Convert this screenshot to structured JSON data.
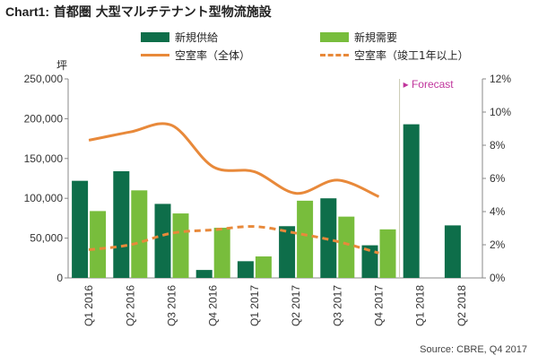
{
  "page": {
    "title_prefix": "Chart1:",
    "title_main": "首都圏 大型マルチテナント型物流施設",
    "unit_label": "坪",
    "source": "Source: CBRE, Q4 2017",
    "forecast_label": "▸ Forecast"
  },
  "legend": {
    "supply": "新規供給",
    "demand": "新規需要",
    "vacancy_all": "空室率（全体）",
    "vacancy_1yr": "空室率（竣工1年以上）"
  },
  "colors": {
    "supply": "#0e6e4a",
    "demand": "#78bd3c",
    "vacancy": "#e8893a",
    "forecast": "#c0349c"
  },
  "chart_data": {
    "type": "bar",
    "categories": [
      "Q1 2016",
      "Q2 2016",
      "Q3 2016",
      "Q4 2016",
      "Q1 2017",
      "Q2 2017",
      "Q3 2017",
      "Q4 2017",
      "Q1 2018",
      "Q2 2018"
    ],
    "series": [
      {
        "name": "新規供給",
        "type": "bar",
        "axis": "left",
        "values": [
          122000,
          134000,
          93000,
          10000,
          21000,
          65000,
          100000,
          41000,
          193000,
          66000
        ]
      },
      {
        "name": "新規需要",
        "type": "bar",
        "axis": "left",
        "values": [
          84000,
          110000,
          81000,
          63000,
          27000,
          97000,
          77000,
          61000,
          null,
          null
        ]
      },
      {
        "name": "空室率（全体）",
        "type": "line",
        "axis": "right",
        "values": [
          8.3,
          8.8,
          9.2,
          6.7,
          6.4,
          5.1,
          5.9,
          4.9,
          null,
          null
        ]
      },
      {
        "name": "空室率（竣工1年以上）",
        "type": "line",
        "style": "dashed",
        "axis": "right",
        "values": [
          1.7,
          2.0,
          2.7,
          2.9,
          3.1,
          2.7,
          2.2,
          1.5,
          null,
          null
        ]
      }
    ],
    "yleft": {
      "ylim": [
        0,
        250000
      ],
      "ticks": [
        "0",
        "50,000",
        "100,000",
        "150,000",
        "200,000",
        "250,000"
      ]
    },
    "yright": {
      "ylim": [
        0,
        12
      ],
      "ticks": [
        "0%",
        "2%",
        "4%",
        "6%",
        "8%",
        "10%",
        "12%"
      ]
    },
    "forecast_start_index": 8
  }
}
